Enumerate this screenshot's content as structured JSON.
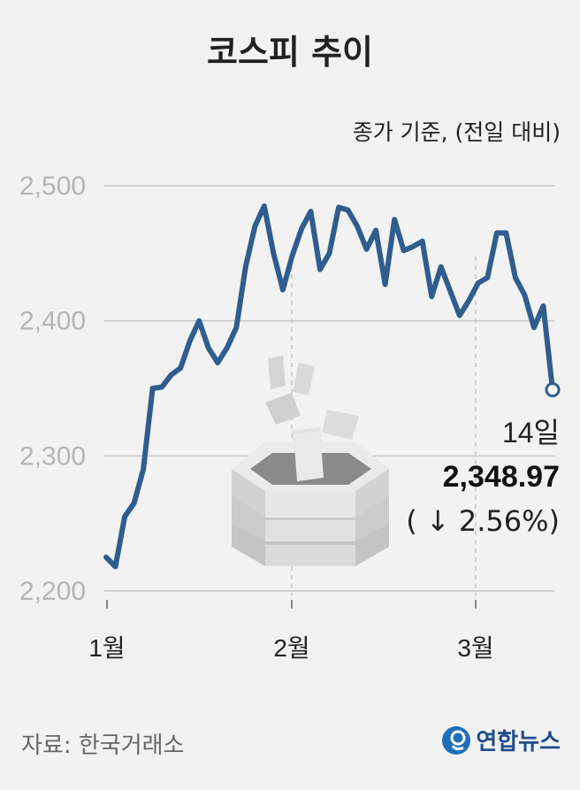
{
  "title": "코스피 추이",
  "subtitle": "종가 기준, (전일 대비)",
  "source": "자료: 한국거래소",
  "logo_text": "연합뉴스",
  "colors": {
    "line": "#2f5d8f",
    "grid": "#c8c8c8",
    "axis_label": "#b5b5b5",
    "background": "#f2f2f2"
  },
  "chart_data": {
    "type": "line",
    "title": "코스피 추이",
    "subtitle": "종가 기준, (전일 대비)",
    "ylim": [
      2200,
      2500
    ],
    "y_ticks": [
      2200,
      2300,
      2400,
      2500
    ],
    "y_tick_labels": [
      "2,200",
      "2,300",
      "2,400",
      "2,500"
    ],
    "x_ticks": [
      "1월",
      "2월",
      "3월"
    ],
    "grid": true,
    "series": [
      {
        "values": [
          2225,
          2218,
          2255,
          2265,
          2290,
          2350,
          2351,
          2360,
          2365,
          2385,
          2400,
          2380,
          2369,
          2380,
          2395,
          2440,
          2470,
          2485,
          2450,
          2423,
          2448,
          2468,
          2481,
          2438,
          2450,
          2484,
          2482,
          2470,
          2453,
          2467,
          2427,
          2475,
          2452,
          2455,
          2459,
          2418,
          2440,
          2422,
          2404,
          2415,
          2428,
          2432,
          2465,
          2465,
          2432,
          2419,
          2395,
          2411,
          2348.97
        ]
      }
    ],
    "annotation": {
      "day": "14일",
      "value": "2,348.97",
      "change": "( ↓ 2.56%)"
    }
  }
}
